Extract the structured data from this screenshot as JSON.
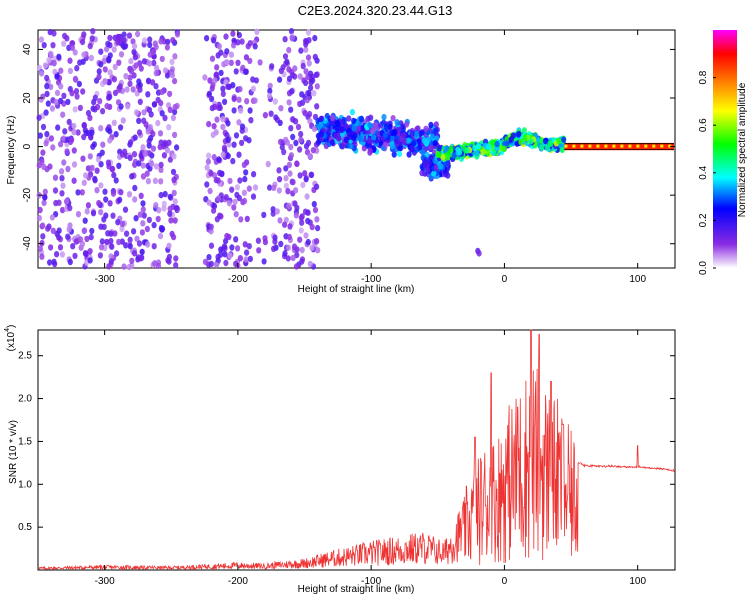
{
  "title": "C2E3.2024.320.23.44.G13",
  "chart_data": [
    {
      "type": "heatmap",
      "xlabel": "Height of straight line (km)",
      "ylabel": "Frequency (Hz)",
      "xlim": [
        -350,
        128
      ],
      "ylim": [
        -50,
        48
      ],
      "x_ticks": [
        -300,
        -200,
        -100,
        0,
        100
      ],
      "x_tick_labels": [
        "-300",
        "-200",
        "-100",
        "0",
        "100"
      ],
      "y_ticks": [
        -40,
        -20,
        0,
        20,
        40
      ],
      "y_tick_labels": [
        "-40",
        "-20",
        "0",
        "20",
        "40"
      ],
      "colorbar": {
        "label": "Normalized spectral amplitude",
        "range": [
          0,
          1
        ],
        "ticks": [
          0.0,
          0.2,
          0.4,
          0.6,
          0.8
        ],
        "tick_labels": [
          "0.0",
          "0.2",
          "0.4",
          "0.6",
          "0.8"
        ],
        "colormap": [
          "#ffffff",
          "#8a2be2",
          "#0000ff",
          "#00ffff",
          "#00ff00",
          "#ffff00",
          "#ff8000",
          "#ff0000",
          "#ff00ff"
        ]
      },
      "regions": [
        {
          "x_range": [
            -350,
            -140
          ],
          "description": "broadband scattered noise, amplitude 0.05-0.25"
        },
        {
          "x_range": [
            -140,
            -50
          ],
          "freq_center": 3,
          "freq_spread": 10
        },
        {
          "x_range": [
            -50,
            45
          ],
          "freq_center": 0,
          "freq_spread": 5,
          "peak_amplitude": 0.7
        },
        {
          "x_range": [
            45,
            128
          ],
          "freq_center": 0,
          "freq_spread": 1,
          "amplitude": 0.85
        }
      ],
      "isolated_blobs": [
        {
          "x": -20,
          "y": -43
        }
      ]
    },
    {
      "type": "line",
      "xlabel": "Height of straight line (km)",
      "ylabel": "SNR (10 * v/v)",
      "y_multiplier": "(x10",
      "y_multiplier_exp": "4",
      "y_multiplier_close": ")",
      "xlim": [
        -350,
        128
      ],
      "ylim": [
        0,
        2.8
      ],
      "x_ticks": [
        -300,
        -200,
        -100,
        0,
        100
      ],
      "x_tick_labels": [
        "-300",
        "-200",
        "-100",
        "0",
        "100"
      ],
      "y_ticks": [
        0.5,
        1.0,
        1.5,
        2.0,
        2.5
      ],
      "y_tick_labels": [
        "0.5",
        "1.0",
        "1.5",
        "2.0",
        "2.5"
      ],
      "series": [
        {
          "color": "#ee3333",
          "x": [
            -350,
            -300,
            -250,
            -200,
            -180,
            -150,
            -130,
            -100,
            -80,
            -60,
            -45,
            -35,
            -25,
            -15,
            -5,
            0,
            10,
            20,
            30,
            40,
            50,
            60,
            80,
            100,
            120,
            128
          ],
          "y": [
            0.03,
            0.05,
            0.04,
            0.08,
            0.07,
            0.12,
            0.2,
            0.3,
            0.35,
            0.4,
            0.3,
            0.6,
            0.9,
            1.2,
            1.3,
            1.5,
            1.7,
            2.0,
            1.8,
            1.6,
            1.3,
            1.22,
            1.21,
            1.2,
            1.18,
            1.15
          ],
          "peaks": [
            {
              "x": -22,
              "y": 1.55
            },
            {
              "x": -10,
              "y": 2.3
            },
            {
              "x": 10,
              "y": 1.9
            },
            {
              "x": 20,
              "y": 2.8
            },
            {
              "x": 26,
              "y": 2.75
            },
            {
              "x": 35,
              "y": 2.2
            },
            {
              "x": 44,
              "y": 1.7
            },
            {
              "x": 100,
              "y": 1.45
            }
          ]
        }
      ]
    }
  ]
}
